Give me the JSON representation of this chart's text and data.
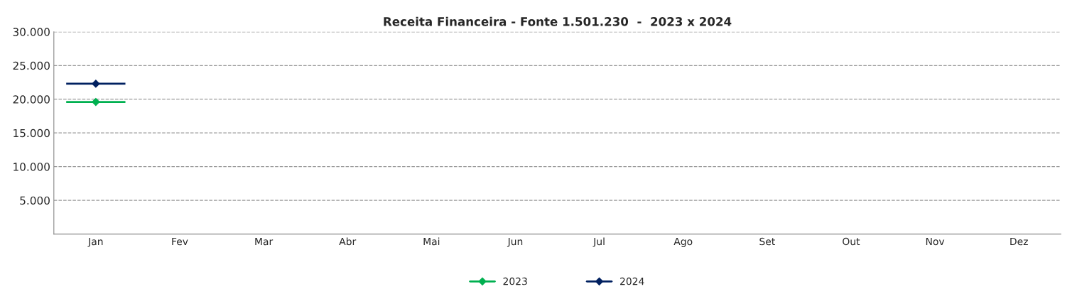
{
  "chart_data": {
    "type": "line",
    "title": "Receita Financeira - Fonte 1.501.230  -  2023 x 2024",
    "categories": [
      "Jan",
      "Fev",
      "Mar",
      "Abr",
      "Mai",
      "Jun",
      "Jul",
      "Ago",
      "Set",
      "Out",
      "Nov",
      "Dez"
    ],
    "series": [
      {
        "name": "2023",
        "color": "#00b050",
        "values": [
          19600,
          null,
          null,
          null,
          null,
          null,
          null,
          null,
          null,
          null,
          null,
          null
        ]
      },
      {
        "name": "2024",
        "color": "#002060",
        "values": [
          22300,
          null,
          null,
          null,
          null,
          null,
          null,
          null,
          null,
          null,
          null,
          null
        ]
      }
    ],
    "ylim": [
      0,
      30000
    ],
    "yticks": [
      {
        "value": 0,
        "label": null
      },
      {
        "value": 5000,
        "label": "5.000"
      },
      {
        "value": 10000,
        "label": "10.000"
      },
      {
        "value": 15000,
        "label": "15.000"
      },
      {
        "value": 20000,
        "label": "20.000"
      },
      {
        "value": 25000,
        "label": "25.000"
      },
      {
        "value": 30000,
        "label": "30.000"
      }
    ],
    "grid": "y",
    "legend": "bottom",
    "marker": "diamond",
    "line_style": "solid"
  }
}
